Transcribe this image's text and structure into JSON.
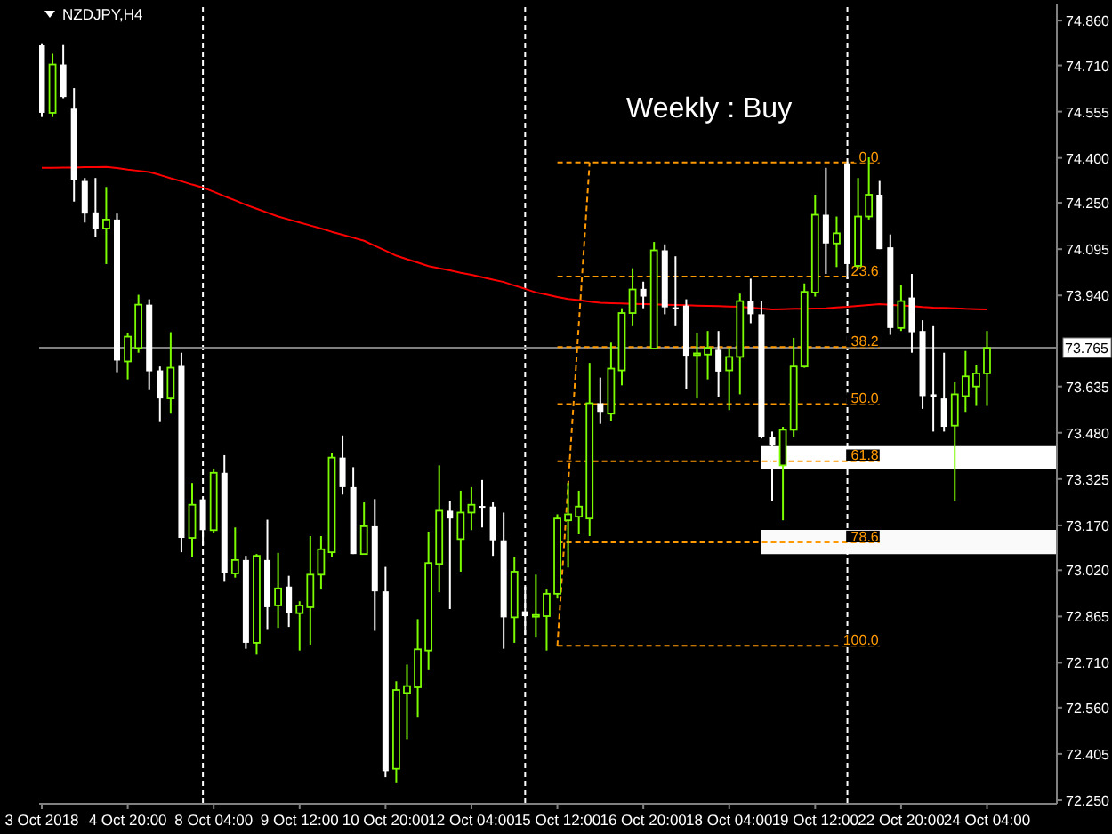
{
  "chart_data": {
    "type": "candlestick",
    "title": "NZDJPY,H4",
    "categories": [
      "3 Oct 2018",
      null,
      null,
      null,
      null,
      null,
      null,
      null,
      "4 Oct 20:00",
      null,
      null,
      null,
      null,
      null,
      null,
      null,
      "8 Oct 04:00",
      null,
      null,
      null,
      null,
      null,
      null,
      null,
      "9 Oct 12:00",
      null,
      null,
      null,
      null,
      null,
      null,
      null,
      "10 Oct 20:00",
      null,
      null,
      null,
      null,
      null,
      null,
      null,
      "12 Oct 04:00",
      null,
      null,
      null,
      null,
      null,
      null,
      null,
      "15 Oct 12:00",
      null,
      null,
      null,
      null,
      null,
      null,
      null,
      "16 Oct 20:00",
      null,
      null,
      null,
      null,
      null,
      null,
      null,
      "18 Oct 04:00",
      null,
      null,
      null,
      null,
      null,
      null,
      null,
      "19 Oct 12:00",
      null,
      null,
      null,
      null,
      null,
      null,
      null,
      "22 Oct 20:00",
      null,
      null,
      null,
      null,
      null,
      null,
      null,
      "24 Oct 04:00"
    ],
    "ohlc": [
      [
        74.777,
        74.784,
        74.537,
        74.551
      ],
      [
        74.551,
        74.749,
        74.537,
        74.713
      ],
      [
        74.713,
        74.778,
        74.6,
        74.604
      ],
      [
        74.565,
        74.634,
        74.254,
        74.327
      ],
      [
        74.323,
        74.333,
        74.184,
        74.214
      ],
      [
        74.218,
        74.333,
        74.135,
        74.162
      ],
      [
        74.164,
        74.303,
        74.045,
        74.194
      ],
      [
        74.194,
        74.214,
        73.683,
        73.722
      ],
      [
        73.719,
        73.814,
        73.659,
        73.802
      ],
      [
        73.764,
        73.942,
        73.748,
        73.909
      ],
      [
        73.909,
        73.927,
        73.623,
        73.686
      ],
      [
        73.689,
        73.702,
        73.516,
        73.595
      ],
      [
        73.595,
        73.817,
        73.544,
        73.698
      ],
      [
        73.704,
        73.748,
        73.08,
        73.128
      ],
      [
        73.128,
        73.312,
        73.064,
        73.239
      ],
      [
        73.257,
        73.257,
        73.104,
        73.154
      ],
      [
        73.154,
        73.358,
        73.144,
        73.346
      ],
      [
        73.346,
        73.405,
        72.981,
        73.009
      ],
      [
        73.009,
        73.163,
        72.995,
        73.054
      ],
      [
        73.054,
        73.068,
        72.757,
        72.777
      ],
      [
        72.777,
        73.074,
        72.737,
        73.068
      ],
      [
        73.054,
        73.189,
        72.823,
        72.896
      ],
      [
        72.902,
        73.078,
        72.827,
        72.959
      ],
      [
        72.965,
        73.001,
        72.83,
        72.876
      ],
      [
        72.876,
        72.916,
        72.751,
        72.902
      ],
      [
        72.896,
        73.134,
        72.771,
        73.005
      ],
      [
        73.005,
        73.134,
        72.955,
        73.09
      ],
      [
        73.08,
        73.411,
        73.064,
        73.397
      ],
      [
        73.397,
        73.471,
        73.273,
        73.298
      ],
      [
        73.298,
        73.365,
        73.074,
        73.074
      ],
      [
        73.074,
        73.247,
        73.072,
        73.167
      ],
      [
        73.167,
        73.258,
        72.817,
        72.949
      ],
      [
        72.949,
        73.031,
        72.327,
        72.347
      ],
      [
        72.355,
        72.648,
        72.307,
        72.619
      ],
      [
        72.609,
        72.704,
        72.454,
        72.632
      ],
      [
        72.628,
        72.856,
        72.529,
        72.755
      ],
      [
        72.751,
        73.149,
        72.688,
        73.044
      ],
      [
        73.041,
        73.371,
        72.946,
        73.219
      ],
      [
        73.219,
        73.252,
        72.89,
        73.193
      ],
      [
        73.124,
        73.286,
        73.015,
        73.213
      ],
      [
        73.213,
        73.298,
        73.154,
        73.239
      ],
      [
        73.235,
        73.322,
        73.163,
        73.229
      ],
      [
        73.233,
        73.247,
        73.068,
        73.12
      ],
      [
        73.12,
        73.213,
        72.757,
        72.862
      ],
      [
        72.862,
        73.064,
        72.777,
        73.015
      ],
      [
        72.882,
        72.965,
        72.803,
        72.866
      ],
      [
        72.866,
        73.005,
        72.797,
        72.87
      ],
      [
        72.866,
        72.955,
        72.751,
        72.941
      ],
      [
        72.941,
        73.207,
        72.925,
        73.193
      ],
      [
        73.187,
        73.312,
        73.029,
        73.207
      ],
      [
        73.199,
        73.286,
        73.14,
        73.233
      ],
      [
        73.193,
        73.714,
        73.134,
        73.579
      ],
      [
        73.579,
        73.665,
        73.51,
        73.55
      ],
      [
        73.544,
        73.782,
        73.52,
        73.695
      ],
      [
        73.689,
        73.897,
        73.639,
        73.881
      ],
      [
        73.881,
        74.031,
        73.837,
        73.96
      ],
      [
        73.962,
        73.986,
        73.897,
        73.936
      ],
      [
        73.762,
        74.119,
        73.762,
        74.091
      ],
      [
        74.091,
        74.111,
        73.877,
        73.9
      ],
      [
        73.9,
        74.071,
        73.837,
        73.898
      ],
      [
        73.906,
        73.927,
        73.625,
        73.738
      ],
      [
        73.742,
        73.814,
        73.595,
        73.746
      ],
      [
        73.742,
        73.821,
        73.659,
        73.764
      ],
      [
        73.758,
        73.821,
        73.6,
        73.685
      ],
      [
        73.689,
        73.764,
        73.556,
        73.734
      ],
      [
        73.734,
        73.946,
        73.609,
        73.921
      ],
      [
        73.921,
        73.996,
        73.847,
        73.877
      ],
      [
        73.877,
        73.921,
        73.461,
        73.465
      ],
      [
        73.465,
        73.484,
        73.252,
        73.437
      ],
      [
        73.371,
        73.5,
        73.187,
        73.49
      ],
      [
        73.49,
        73.798,
        73.465,
        73.702
      ],
      [
        73.702,
        73.98,
        73.698,
        73.952
      ],
      [
        73.95,
        74.277,
        73.936,
        74.21
      ],
      [
        74.21,
        74.367,
        74.012,
        74.114
      ],
      [
        74.114,
        74.204,
        74.035,
        74.148
      ],
      [
        74.382,
        74.388,
        73.995,
        74.045
      ],
      [
        74.039,
        74.333,
        74.031,
        74.204
      ],
      [
        74.204,
        74.402,
        74.194,
        74.277
      ],
      [
        74.277,
        74.323,
        74.095,
        74.095
      ],
      [
        74.101,
        74.144,
        73.808,
        73.831
      ],
      [
        73.831,
        73.976,
        73.821,
        73.921
      ],
      [
        73.933,
        74.012,
        73.748,
        73.817
      ],
      [
        73.821,
        73.857,
        73.56,
        73.603
      ],
      [
        73.609,
        73.837,
        73.484,
        73.6
      ],
      [
        73.595,
        73.748,
        73.484,
        73.5
      ],
      [
        73.504,
        73.649,
        73.252,
        73.609
      ],
      [
        73.603,
        73.754,
        73.55,
        73.669
      ],
      [
        73.635,
        73.708,
        73.57,
        73.679
      ],
      [
        73.679,
        73.821,
        73.57,
        73.764
      ]
    ],
    "colors": [
      "#ffffff",
      "#7cfc00",
      "#ffffff",
      "#ffffff",
      "#ffffff",
      "#ffffff",
      "#7cfc00",
      "#ffffff",
      "#7cfc00",
      "#7cfc00",
      "#ffffff",
      "#ffffff",
      "#7cfc00",
      "#ffffff",
      "#7cfc00",
      "#ffffff",
      "#7cfc00",
      "#ffffff",
      "#7cfc00",
      "#ffffff",
      "#7cfc00",
      "#ffffff",
      "#7cfc00",
      "#ffffff",
      "#7cfc00",
      "#7cfc00",
      "#7cfc00",
      "#7cfc00",
      "#ffffff",
      "#ffffff",
      "#7cfc00",
      "#ffffff",
      "#ffffff",
      "#7cfc00",
      "#7cfc00",
      "#7cfc00",
      "#7cfc00",
      "#7cfc00",
      "#ffffff",
      "#7cfc00",
      "#7cfc00",
      "#ffffff",
      "#ffffff",
      "#ffffff",
      "#7cfc00",
      "#ffffff",
      "#7cfc00",
      "#7cfc00",
      "#7cfc00",
      "#7cfc00",
      "#7cfc00",
      "#7cfc00",
      "#ffffff",
      "#7cfc00",
      "#7cfc00",
      "#7cfc00",
      "#ffffff",
      "#7cfc00",
      "#ffffff",
      "#ffffff",
      "#ffffff",
      "#7cfc00",
      "#7cfc00",
      "#ffffff",
      "#7cfc00",
      "#7cfc00",
      "#ffffff",
      "#ffffff",
      "#ffffff",
      "#7cfc00",
      "#7cfc00",
      "#7cfc00",
      "#7cfc00",
      "#ffffff",
      "#7cfc00",
      "#ffffff",
      "#7cfc00",
      "#7cfc00",
      "#ffffff",
      "#ffffff",
      "#7cfc00",
      "#ffffff",
      "#ffffff",
      "#ffffff",
      "#ffffff",
      "#7cfc00",
      "#7cfc00",
      "#7cfc00",
      "#7cfc00"
    ],
    "series": [
      {
        "type": "line",
        "color": "#ff0000",
        "values": [
          74.367,
          74.367,
          74.368,
          74.368,
          74.369,
          74.369,
          74.37,
          74.366,
          74.361,
          74.357,
          74.353,
          74.343,
          74.332,
          74.322,
          74.311,
          74.301,
          74.287,
          74.272,
          74.258,
          74.243,
          74.23,
          74.217,
          74.204,
          74.194,
          74.184,
          74.174,
          74.164,
          74.153,
          74.143,
          74.133,
          74.123,
          74.106,
          74.09,
          74.073,
          74.061,
          74.05,
          74.038,
          74.031,
          74.024,
          74.016,
          74.009,
          74.001,
          73.993,
          73.985,
          73.973,
          73.962,
          73.95,
          73.943,
          73.935,
          73.928,
          73.924,
          73.919,
          73.915,
          73.914,
          73.913,
          73.912,
          73.911,
          73.91,
          73.909,
          73.908,
          73.907,
          73.906,
          73.905,
          73.904,
          73.903,
          73.902,
          73.899,
          73.896,
          73.893,
          73.894,
          73.895,
          73.895,
          73.896,
          73.897,
          73.9,
          73.902,
          73.905,
          73.908,
          73.911,
          73.909,
          73.906,
          73.904,
          73.901,
          73.899,
          73.898,
          73.897,
          73.895,
          73.894,
          73.893
        ]
      },
      {
        "type": "line",
        "color": "#ffffff",
        "values": [
          null,
          null,
          null,
          null,
          null,
          null,
          null,
          null,
          null,
          null,
          null,
          null,
          null,
          null,
          null,
          null,
          null,
          null,
          null,
          null,
          null,
          null,
          null,
          null,
          null,
          null,
          null,
          null,
          null,
          null,
          null,
          null,
          null,
          null,
          null,
          null,
          null,
          null,
          null,
          null,
          null,
          null,
          null,
          null,
          null,
          null,
          null,
          null,
          null,
          null,
          null,
          null,
          null,
          null,
          null,
          null,
          null,
          null,
          null,
          null,
          null,
          null,
          null,
          null,
          null,
          null,
          null,
          null,
          null,
          null,
          null,
          null,
          null,
          null,
          null,
          null,
          null,
          null,
          null,
          null,
          null,
          null,
          null,
          null,
          null,
          null,
          null,
          null,
          null
        ],
        "lower": [
          null,
          null,
          null,
          null,
          null,
          null,
          null,
          null,
          null,
          null,
          null,
          null,
          null,
          null,
          null,
          null,
          null,
          null,
          null,
          null,
          null,
          null,
          null,
          null,
          null,
          null,
          null,
          null,
          null,
          null,
          null,
          null,
          null,
          null,
          null,
          null,
          null,
          null,
          null,
          null,
          null,
          null,
          null,
          null,
          null,
          null,
          null,
          null,
          null,
          null,
          null,
          null,
          null,
          null,
          null,
          null,
          null,
          null,
          null,
          null,
          null,
          null,
          null,
          null,
          null,
          null,
          null,
          73.359,
          73.359,
          73.359,
          73.359,
          73.359,
          73.359,
          73.359,
          73.359,
          73.359,
          73.359,
          73.359,
          73.359,
          73.359,
          73.359,
          73.359,
          73.359,
          73.359,
          73.359,
          73.359,
          73.359,
          73.359,
          73.359
        ],
        "upper": [
          null,
          null,
          null,
          null,
          null,
          null,
          null,
          null,
          null,
          null,
          null,
          null,
          null,
          null,
          null,
          null,
          null,
          null,
          null,
          null,
          null,
          null,
          null,
          null,
          null,
          null,
          null,
          null,
          null,
          null,
          null,
          null,
          null,
          null,
          null,
          null,
          null,
          null,
          null,
          null,
          null,
          null,
          null,
          null,
          null,
          null,
          null,
          null,
          null,
          null,
          null,
          null,
          null,
          null,
          null,
          null,
          null,
          null,
          null,
          null,
          null,
          null,
          null,
          null,
          null,
          null,
          null,
          73.435,
          73.435,
          73.435,
          73.435,
          73.435,
          73.435,
          73.435,
          73.435,
          73.435,
          73.435,
          73.435,
          73.435,
          73.435,
          73.435,
          73.435,
          73.435,
          73.435,
          73.435,
          73.435,
          73.435,
          73.435,
          73.435
        ]
      },
      {
        "type": "line",
        "color": "#fafafa",
        "values": [
          null,
          null,
          null,
          null,
          null,
          null,
          null,
          null,
          null,
          null,
          null,
          null,
          null,
          null,
          null,
          null,
          null,
          null,
          null,
          null,
          null,
          null,
          null,
          null,
          null,
          null,
          null,
          null,
          null,
          null,
          null,
          null,
          null,
          null,
          null,
          null,
          null,
          null,
          null,
          null,
          null,
          null,
          null,
          null,
          null,
          null,
          null,
          null,
          null,
          null,
          null,
          null,
          null,
          null,
          null,
          null,
          null,
          null,
          null,
          null,
          null,
          null,
          null,
          null,
          null,
          null,
          null,
          null,
          null,
          null,
          null,
          null,
          null,
          null,
          null,
          null,
          null,
          null,
          null,
          null,
          null,
          null,
          null,
          null,
          null,
          null,
          null,
          null,
          null
        ],
        "lower": [
          null,
          null,
          null,
          null,
          null,
          null,
          null,
          null,
          null,
          null,
          null,
          null,
          null,
          null,
          null,
          null,
          null,
          null,
          null,
          null,
          null,
          null,
          null,
          null,
          null,
          null,
          null,
          null,
          null,
          null,
          null,
          null,
          null,
          null,
          null,
          null,
          null,
          null,
          null,
          null,
          null,
          null,
          null,
          null,
          null,
          null,
          null,
          null,
          null,
          null,
          null,
          null,
          null,
          null,
          null,
          null,
          null,
          null,
          null,
          null,
          null,
          null,
          null,
          null,
          null,
          null,
          null,
          73.074,
          73.074,
          73.074,
          73.074,
          73.074,
          73.074,
          73.074,
          73.074,
          73.074,
          73.074,
          73.074,
          73.074,
          73.074,
          73.074,
          73.074,
          73.074,
          73.074,
          73.074,
          73.074,
          73.074,
          73.074,
          73.074
        ],
        "upper": [
          null,
          null,
          null,
          null,
          null,
          null,
          null,
          null,
          null,
          null,
          null,
          null,
          null,
          null,
          null,
          null,
          null,
          null,
          null,
          null,
          null,
          null,
          null,
          null,
          null,
          null,
          null,
          null,
          null,
          null,
          null,
          null,
          null,
          null,
          null,
          null,
          null,
          null,
          null,
          null,
          null,
          null,
          null,
          null,
          null,
          null,
          null,
          null,
          null,
          null,
          null,
          null,
          null,
          null,
          null,
          null,
          null,
          null,
          null,
          null,
          null,
          null,
          null,
          null,
          null,
          null,
          null,
          73.155,
          73.155,
          73.155,
          73.155,
          73.155,
          73.155,
          73.155,
          73.155,
          73.155,
          73.155,
          73.155,
          73.155,
          73.155,
          73.155,
          73.155,
          73.155,
          73.155,
          73.155,
          73.155,
          73.155,
          73.155,
          73.155
        ]
      },
      {
        "type": "line",
        "color": "#ff9900",
        "line_style": "dashed",
        "values": [
          null,
          null,
          null,
          null,
          null,
          null,
          null,
          null,
          null,
          null,
          null,
          null,
          null,
          null,
          null,
          null,
          null,
          null,
          null,
          null,
          null,
          null,
          null,
          null,
          null,
          null,
          null,
          null,
          null,
          null,
          null,
          null,
          null,
          null,
          null,
          null,
          null,
          null,
          null,
          null,
          null,
          null,
          null,
          null,
          null,
          null,
          null,
          null,
          72.767,
          73.306,
          73.846,
          74.385,
          null,
          null,
          null,
          null,
          null,
          null,
          null,
          null,
          null,
          null,
          null,
          null,
          null,
          null,
          null,
          null,
          null,
          null,
          null,
          null,
          null,
          null,
          null,
          null,
          null,
          null,
          null,
          null,
          null,
          null,
          null,
          null,
          null,
          null,
          null,
          null,
          null
        ]
      },
      {
        "type": "line",
        "name": "0.0",
        "color": "#ff9900",
        "line_style": "dashed",
        "values": [
          null,
          null,
          null,
          null,
          null,
          null,
          null,
          null,
          null,
          null,
          null,
          null,
          null,
          null,
          null,
          null,
          null,
          null,
          null,
          null,
          null,
          null,
          null,
          null,
          null,
          null,
          null,
          null,
          null,
          null,
          null,
          null,
          null,
          null,
          null,
          null,
          null,
          null,
          null,
          null,
          null,
          null,
          null,
          null,
          null,
          null,
          null,
          null,
          74.385,
          74.385,
          74.385,
          74.385,
          74.385,
          74.385,
          74.385,
          74.385,
          74.385,
          74.385,
          74.385,
          74.385,
          74.385,
          74.385,
          74.385,
          74.385,
          74.385,
          74.385,
          74.385,
          74.385,
          74.385,
          74.385,
          74.385,
          74.385,
          74.385,
          74.385,
          74.385,
          74.385,
          74.385,
          74.385,
          74.385,
          null,
          null,
          null,
          null,
          null,
          null,
          null,
          null,
          null,
          null
        ]
      },
      {
        "type": "line",
        "name": "23.6",
        "color": "#ff9900",
        "line_style": "dashed",
        "values": [
          null,
          null,
          null,
          null,
          null,
          null,
          null,
          null,
          null,
          null,
          null,
          null,
          null,
          null,
          null,
          null,
          null,
          null,
          null,
          null,
          null,
          null,
          null,
          null,
          null,
          null,
          null,
          null,
          null,
          null,
          null,
          null,
          null,
          null,
          null,
          null,
          null,
          null,
          null,
          null,
          null,
          null,
          null,
          null,
          null,
          null,
          null,
          null,
          74.003,
          74.003,
          74.003,
          74.003,
          74.003,
          74.003,
          74.003,
          74.003,
          74.003,
          74.003,
          74.003,
          74.003,
          74.003,
          74.003,
          74.003,
          74.003,
          74.003,
          74.003,
          74.003,
          74.003,
          74.003,
          74.003,
          74.003,
          74.003,
          74.003,
          74.003,
          74.003,
          74.003,
          74.003,
          74.003,
          74.003,
          null,
          null,
          null,
          null,
          null,
          null,
          null,
          null,
          null,
          null
        ]
      },
      {
        "type": "line",
        "name": "38.2",
        "color": "#ff9900",
        "line_style": "dashed",
        "values": [
          null,
          null,
          null,
          null,
          null,
          null,
          null,
          null,
          null,
          null,
          null,
          null,
          null,
          null,
          null,
          null,
          null,
          null,
          null,
          null,
          null,
          null,
          null,
          null,
          null,
          null,
          null,
          null,
          null,
          null,
          null,
          null,
          null,
          null,
          null,
          null,
          null,
          null,
          null,
          null,
          null,
          null,
          null,
          null,
          null,
          null,
          null,
          null,
          73.767,
          73.767,
          73.767,
          73.767,
          73.767,
          73.767,
          73.767,
          73.767,
          73.767,
          73.767,
          73.767,
          73.767,
          73.767,
          73.767,
          73.767,
          73.767,
          73.767,
          73.767,
          73.767,
          73.767,
          73.767,
          73.767,
          73.767,
          73.767,
          73.767,
          73.767,
          73.767,
          73.767,
          73.767,
          73.767,
          73.767,
          null,
          null,
          null,
          null,
          null,
          null,
          null,
          null,
          null,
          null
        ]
      },
      {
        "type": "line",
        "name": "50.0",
        "color": "#ff9900",
        "line_style": "dashed",
        "values": [
          null,
          null,
          null,
          null,
          null,
          null,
          null,
          null,
          null,
          null,
          null,
          null,
          null,
          null,
          null,
          null,
          null,
          null,
          null,
          null,
          null,
          null,
          null,
          null,
          null,
          null,
          null,
          null,
          null,
          null,
          null,
          null,
          null,
          null,
          null,
          null,
          null,
          null,
          null,
          null,
          null,
          null,
          null,
          null,
          null,
          null,
          null,
          null,
          73.576,
          73.576,
          73.576,
          73.576,
          73.576,
          73.576,
          73.576,
          73.576,
          73.576,
          73.576,
          73.576,
          73.576,
          73.576,
          73.576,
          73.576,
          73.576,
          73.576,
          73.576,
          73.576,
          73.576,
          73.576,
          73.576,
          73.576,
          73.576,
          73.576,
          73.576,
          73.576,
          73.576,
          73.576,
          73.576,
          73.576,
          null,
          null,
          null,
          null,
          null,
          null,
          null,
          null,
          null,
          null
        ]
      },
      {
        "type": "line",
        "name": "61.8",
        "color": "#ff9900",
        "line_style": "dashed",
        "values": [
          null,
          null,
          null,
          null,
          null,
          null,
          null,
          null,
          null,
          null,
          null,
          null,
          null,
          null,
          null,
          null,
          null,
          null,
          null,
          null,
          null,
          null,
          null,
          null,
          null,
          null,
          null,
          null,
          null,
          null,
          null,
          null,
          null,
          null,
          null,
          null,
          null,
          null,
          null,
          null,
          null,
          null,
          null,
          null,
          null,
          null,
          null,
          null,
          73.385,
          73.385,
          73.385,
          73.385,
          73.385,
          73.385,
          73.385,
          73.385,
          73.385,
          73.385,
          73.385,
          73.385,
          73.385,
          73.385,
          73.385,
          73.385,
          73.385,
          73.385,
          73.385,
          73.385,
          73.385,
          73.385,
          73.385,
          73.385,
          73.385,
          73.385,
          73.385,
          73.385,
          73.385,
          73.385,
          73.385,
          null,
          null,
          null,
          null,
          null,
          null,
          null,
          null,
          null,
          null
        ]
      },
      {
        "type": "line",
        "name": "78.6",
        "color": "#ff9900",
        "line_style": "dashed",
        "values": [
          null,
          null,
          null,
          null,
          null,
          null,
          null,
          null,
          null,
          null,
          null,
          null,
          null,
          null,
          null,
          null,
          null,
          null,
          null,
          null,
          null,
          null,
          null,
          null,
          null,
          null,
          null,
          null,
          null,
          null,
          null,
          null,
          null,
          null,
          null,
          null,
          null,
          null,
          null,
          null,
          null,
          null,
          null,
          null,
          null,
          null,
          null,
          null,
          73.113,
          73.113,
          73.113,
          73.113,
          73.113,
          73.113,
          73.113,
          73.113,
          73.113,
          73.113,
          73.113,
          73.113,
          73.113,
          73.113,
          73.113,
          73.113,
          73.113,
          73.113,
          73.113,
          73.113,
          73.113,
          73.113,
          73.113,
          73.113,
          73.113,
          73.113,
          73.113,
          73.113,
          73.113,
          73.113,
          73.113,
          null,
          null,
          null,
          null,
          null,
          null,
          null,
          null,
          null,
          null
        ]
      },
      {
        "type": "line",
        "name": "100.0",
        "color": "#ff9900",
        "line_style": "dashed",
        "values": [
          null,
          null,
          null,
          null,
          null,
          null,
          null,
          null,
          null,
          null,
          null,
          null,
          null,
          null,
          null,
          null,
          null,
          null,
          null,
          null,
          null,
          null,
          null,
          null,
          null,
          null,
          null,
          null,
          null,
          null,
          null,
          null,
          null,
          null,
          null,
          null,
          null,
          null,
          null,
          null,
          null,
          null,
          null,
          null,
          null,
          null,
          null,
          null,
          72.767,
          72.767,
          72.767,
          72.767,
          72.767,
          72.767,
          72.767,
          72.767,
          72.767,
          72.767,
          72.767,
          72.767,
          72.767,
          72.767,
          72.767,
          72.767,
          72.767,
          72.767,
          72.767,
          72.767,
          72.767,
          72.767,
          72.767,
          72.767,
          72.767,
          72.767,
          72.767,
          72.767,
          72.767,
          72.767,
          72.767,
          null,
          null,
          null,
          null,
          null,
          null,
          null,
          null,
          null,
          null
        ]
      }
    ],
    "ylim": [
      72.238,
      74.917
    ],
    "yticks": [
      {
        "value": 74.86,
        "label": "74.860"
      },
      {
        "value": 74.71,
        "label": "74.710"
      },
      {
        "value": 74.555,
        "label": "74.555"
      },
      {
        "value": 74.4,
        "label": "74.400"
      },
      {
        "value": 74.25,
        "label": "74.250"
      },
      {
        "value": 74.095,
        "label": "74.095"
      },
      {
        "value": 73.94,
        "label": "73.940"
      },
      {
        "value": 73.635,
        "label": "73.635"
      },
      {
        "value": 73.48,
        "label": "73.480"
      },
      {
        "value": 73.325,
        "label": "73.325"
      },
      {
        "value": 73.17,
        "label": "73.170"
      },
      {
        "value": 73.02,
        "label": "73.020"
      },
      {
        "value": 72.865,
        "label": "72.865"
      },
      {
        "value": 72.71,
        "label": "72.710"
      },
      {
        "value": 72.56,
        "label": "72.560"
      },
      {
        "value": 72.405,
        "label": "72.405"
      },
      {
        "value": 72.25,
        "label": "72.250"
      }
    ],
    "ref_lines": [
      {
        "axis": "y",
        "value": 73.765,
        "label": "73.765",
        "color": "#808080"
      }
    ],
    "annotations": [
      "Weekly : Buy"
    ]
  }
}
